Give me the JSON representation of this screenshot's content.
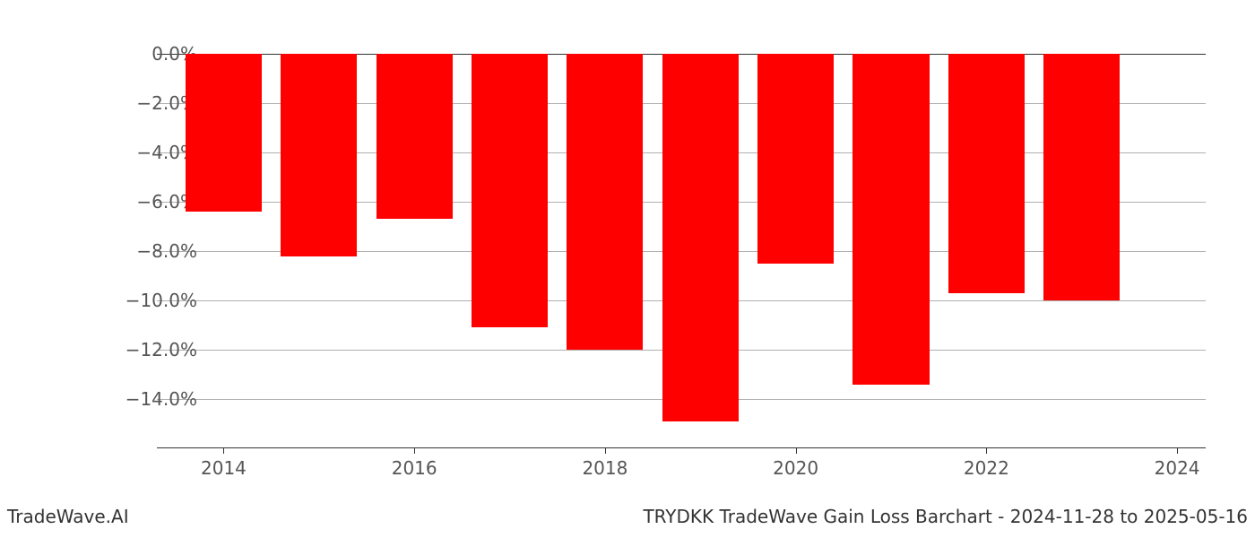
{
  "chart": {
    "type": "bar",
    "years": [
      2014,
      2015,
      2016,
      2017,
      2018,
      2019,
      2020,
      2021,
      2022,
      2023
    ],
    "values": [
      -6.4,
      -8.2,
      -6.7,
      -11.1,
      -12.0,
      -14.9,
      -8.5,
      -13.4,
      -9.7,
      -10.0
    ],
    "bar_color": "#ff0000",
    "background_color": "#ffffff",
    "grid_color": "#b0b0b0",
    "ylim": [
      -16.0,
      0.0
    ],
    "ytick_step": 2.0,
    "ytick_format_suffix": "%",
    "ytick_labels": [
      "0.0%",
      "−2.0%",
      "−4.0%",
      "−6.0%",
      "−8.0%",
      "−10.0%",
      "−12.0%",
      "−14.0%"
    ],
    "ytick_values": [
      0.0,
      -2.0,
      -4.0,
      -6.0,
      -8.0,
      -10.0,
      -12.0,
      -14.0
    ],
    "xtick_labels": [
      "2014",
      "2016",
      "2018",
      "2020",
      "2022",
      "2024"
    ],
    "xtick_values": [
      2014,
      2016,
      2018,
      2020,
      2022,
      2024
    ],
    "xlim": [
      2013.3,
      2024.3
    ],
    "bar_width": 0.8,
    "tick_fontsize": 20,
    "tick_color": "#555555",
    "footer_fontsize": 20
  },
  "footer": {
    "left": "TradeWave.AI",
    "right": "TRYDKK TradeWave Gain Loss Barchart - 2024-11-28 to 2025-05-16"
  }
}
